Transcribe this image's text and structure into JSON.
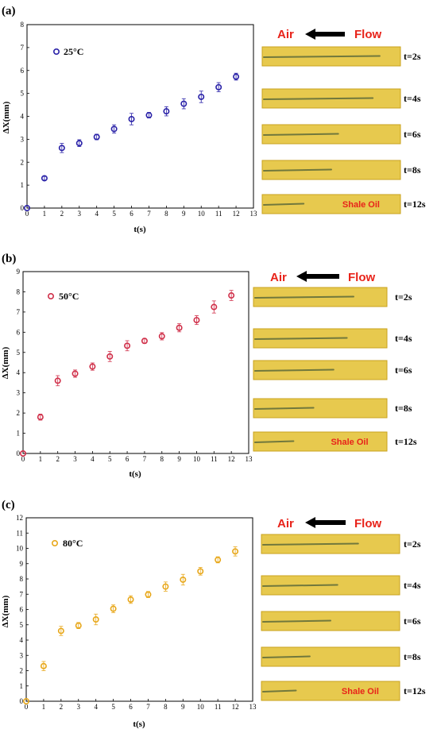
{
  "colors": {
    "series_25": "#2a22a8",
    "series_50": "#d0304a",
    "series_80": "#e8a81c",
    "strip": "#e7c94e",
    "strip_dark": "#c9a21e",
    "accent_red": "#e8231a"
  },
  "chart_data": [
    {
      "type": "scatter",
      "panel_label": "(a)",
      "legend": "25°C",
      "xlabel": "t(s)",
      "ylabel": "ΔX(mm)",
      "xlim": [
        0,
        13
      ],
      "ylim": [
        0,
        8
      ],
      "x": [
        0,
        1,
        2,
        3,
        4,
        5,
        6,
        7,
        8,
        9,
        10,
        11,
        12
      ],
      "y": [
        0,
        1.3,
        2.62,
        2.83,
        3.1,
        3.45,
        3.88,
        4.05,
        4.22,
        4.55,
        4.85,
        5.27,
        5.73
      ],
      "err": [
        0,
        0.08,
        0.2,
        0.15,
        0.12,
        0.18,
        0.25,
        0.12,
        0.2,
        0.22,
        0.25,
        0.2,
        0.15
      ],
      "x_ticks": [
        "0",
        "1",
        "2",
        "3",
        "4",
        "5",
        "6",
        "7",
        "8",
        "9",
        "10",
        "11",
        "12",
        "13"
      ],
      "y_ticks": [
        "0",
        "1",
        "2",
        "3",
        "4",
        "5",
        "6",
        "7",
        "8"
      ]
    },
    {
      "type": "scatter",
      "panel_label": "(b)",
      "legend": "50°C",
      "xlabel": "t(s)",
      "ylabel": "ΔX(mm)",
      "xlim": [
        0,
        13
      ],
      "ylim": [
        0,
        9
      ],
      "x": [
        0,
        1,
        2,
        3,
        4,
        5,
        6,
        7,
        8,
        9,
        10,
        11,
        12
      ],
      "y": [
        0,
        1.8,
        3.6,
        3.95,
        4.3,
        4.8,
        5.33,
        5.57,
        5.8,
        6.22,
        6.6,
        7.25,
        7.82
      ],
      "err": [
        0,
        0.15,
        0.25,
        0.18,
        0.18,
        0.25,
        0.25,
        0.12,
        0.18,
        0.2,
        0.22,
        0.3,
        0.25
      ],
      "x_ticks": [
        "0",
        "1",
        "2",
        "3",
        "4",
        "5",
        "6",
        "7",
        "8",
        "9",
        "10",
        "11",
        "12",
        "13"
      ],
      "y_ticks": [
        "0",
        "1",
        "2",
        "3",
        "4",
        "5",
        "6",
        "7",
        "8",
        "9"
      ]
    },
    {
      "type": "scatter",
      "panel_label": "(c)",
      "legend": "80°C",
      "xlabel": "t(s)",
      "ylabel": "ΔX(mm)",
      "xlim": [
        0,
        13
      ],
      "ylim": [
        0,
        12
      ],
      "x": [
        0,
        1,
        2,
        3,
        4,
        5,
        6,
        7,
        8,
        9,
        10,
        11,
        12
      ],
      "y": [
        0,
        2.3,
        4.6,
        4.95,
        5.35,
        6.05,
        6.65,
        6.98,
        7.5,
        7.95,
        8.5,
        9.25,
        9.8
      ],
      "err": [
        0,
        0.3,
        0.3,
        0.2,
        0.35,
        0.25,
        0.25,
        0.2,
        0.3,
        0.35,
        0.25,
        0.2,
        0.3
      ],
      "x_ticks": [
        "0",
        "1",
        "2",
        "3",
        "4",
        "5",
        "6",
        "7",
        "8",
        "9",
        "10",
        "11",
        "12",
        "13"
      ],
      "y_ticks": [
        "0",
        "1",
        "2",
        "3",
        "4",
        "5",
        "6",
        "7",
        "8",
        "9",
        "10",
        "11",
        "12"
      ]
    }
  ],
  "photos": [
    {
      "air": "Air",
      "flow": "Flow",
      "oil_label": "Shale Oil",
      "frames": [
        {
          "label": "t=2s",
          "interface": 0.85
        },
        {
          "label": "t=4s",
          "interface": 0.8
        },
        {
          "label": "t=6s",
          "interface": 0.55
        },
        {
          "label": "t=8s",
          "interface": 0.5
        },
        {
          "label": "t=12s",
          "interface": 0.3
        }
      ]
    },
    {
      "air": "Air",
      "flow": "Flow",
      "oil_label": "Shale Oil",
      "frames": [
        {
          "label": "t=2s",
          "interface": 0.75
        },
        {
          "label": "t=4s",
          "interface": 0.7
        },
        {
          "label": "t=6s",
          "interface": 0.6
        },
        {
          "label": "t=8s",
          "interface": 0.45
        },
        {
          "label": "t=12s",
          "interface": 0.3
        }
      ]
    },
    {
      "air": "Air",
      "flow": "Flow",
      "oil_label": "Shale Oil",
      "frames": [
        {
          "label": "t=2s",
          "interface": 0.7
        },
        {
          "label": "t=4s",
          "interface": 0.55
        },
        {
          "label": "t=6s",
          "interface": 0.5
        },
        {
          "label": "t=8s",
          "interface": 0.35
        },
        {
          "label": "t=12s",
          "interface": 0.25
        }
      ]
    }
  ]
}
